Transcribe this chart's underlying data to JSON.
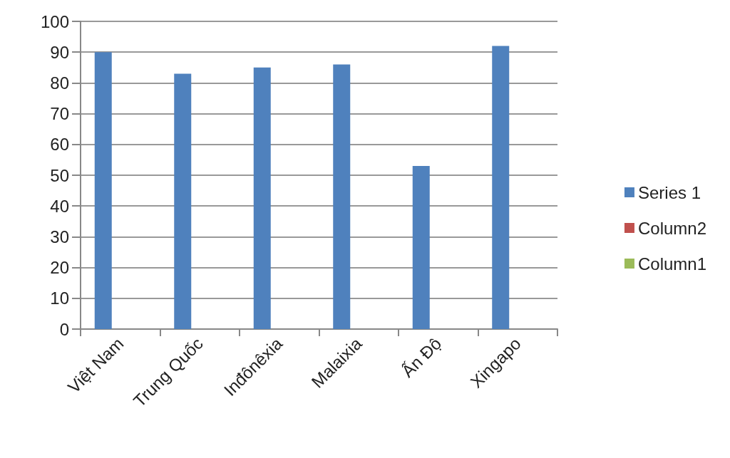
{
  "chart_data": {
    "type": "bar",
    "categories": [
      "Việt Nam",
      "Trung Quốc",
      "Inđônêxia",
      "Malaixia",
      "Ấn Độ",
      "Xingapo"
    ],
    "series": [
      {
        "name": "Series 1",
        "color": "#4f81bd",
        "values": [
          90,
          83,
          85,
          86,
          53,
          92
        ]
      },
      {
        "name": "Column2",
        "color": "#c0504d",
        "values": [
          null,
          null,
          null,
          null,
          null,
          null
        ]
      },
      {
        "name": "Column1",
        "color": "#9bbb59",
        "values": [
          null,
          null,
          null,
          null,
          null,
          null
        ]
      }
    ],
    "ylim": [
      0,
      100
    ],
    "yticks": [
      0,
      10,
      20,
      30,
      40,
      50,
      60,
      70,
      80,
      90,
      100
    ],
    "grid": "y",
    "legend": "right"
  }
}
